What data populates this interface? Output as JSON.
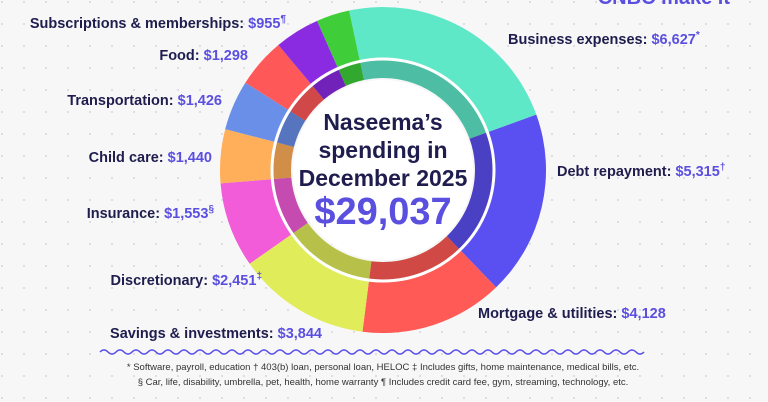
{
  "chart_data": {
    "type": "donut",
    "logo": "CNBC make it",
    "center_title": [
      "Naseema’s",
      "spending in",
      "December 2025"
    ],
    "total": {
      "value": 29037,
      "label": "$29,037"
    },
    "categories": [
      "Business expenses:",
      "Debt repayment:",
      "Mortgage & utilities:",
      "Savings & investments:",
      "Discretionary:",
      "Insurance:",
      "Child care:",
      "Transportation:",
      "Food:",
      "Subscriptions & memberships:"
    ],
    "values": [
      6627,
      5315,
      4128,
      3844,
      2451,
      1553,
      1440,
      1426,
      1298,
      955
    ],
    "value_labels": [
      "$6,627",
      "$5,315",
      "$4,128",
      "$3,844",
      "$2,451",
      "$1,553",
      "$1,440",
      "$1,426",
      "$1,298",
      "$955"
    ],
    "footnote_marks": [
      "*",
      "†",
      null,
      null,
      "‡",
      "§",
      null,
      null,
      null,
      "¶"
    ],
    "colors": [
      "#5ee8c8",
      "#5a4ff0",
      "#ff5a55",
      "#e0ec5a",
      "#f25cd8",
      "#ffae5a",
      "#6a8fe8",
      "#ff5858",
      "#8a2be2",
      "#3fce3a"
    ],
    "footnotes": [
      "* Software, payroll, education  † 403(b) loan, personal loan, HELOC  ‡ Includes gifts, home maintenance, medical bills, etc.",
      "§ Car, life, disability, umbrella, pet, health, home warranty  ¶ Includes credit card fee, gym, streaming, technology, etc."
    ]
  }
}
